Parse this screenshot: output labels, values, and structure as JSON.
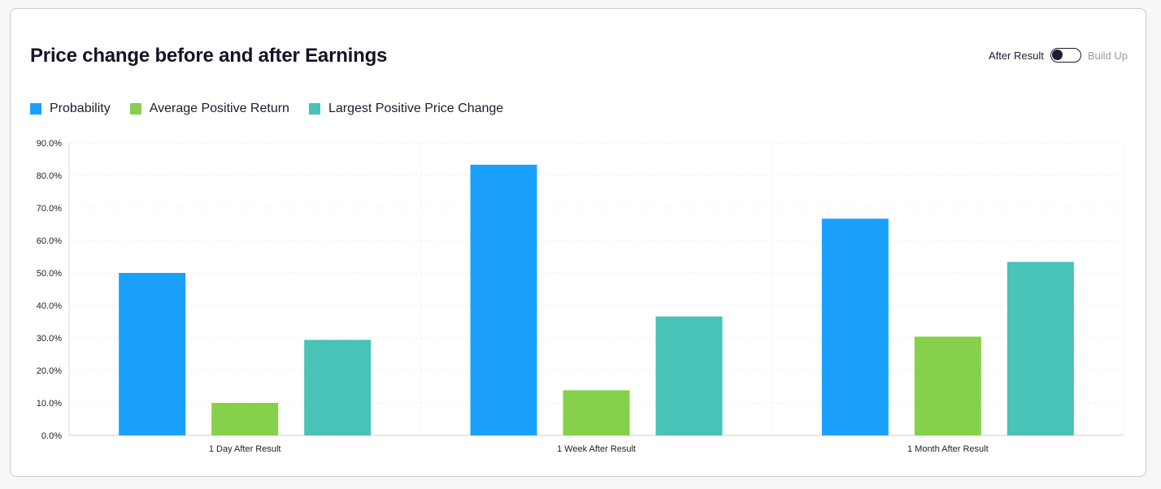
{
  "title": "Price change before and after Earnings",
  "toggle": {
    "left_label": "After Result",
    "right_label": "Build Up",
    "state": "After Result"
  },
  "colors": {
    "probability": "#1aa0fb",
    "avg_positive": "#86d04c",
    "largest_positive": "#49c2b8"
  },
  "chart_data": {
    "type": "bar",
    "categories": [
      "1 Day After Result",
      "1 Week After Result",
      "1 Month After Result"
    ],
    "series": [
      {
        "name": "Probability",
        "values": [
          50.0,
          83.3,
          66.7
        ],
        "color": "#1aa0fb"
      },
      {
        "name": "Average Positive Return",
        "values": [
          10.0,
          13.9,
          30.4
        ],
        "color": "#86d04c"
      },
      {
        "name": "Largest Positive Price Change",
        "values": [
          29.4,
          36.6,
          53.4
        ],
        "color": "#49c2b8"
      }
    ],
    "ylim": [
      0,
      90
    ],
    "yticks": [
      "0.0%",
      "10.0%",
      "20.0%",
      "30.0%",
      "40.0%",
      "50.0%",
      "60.0%",
      "70.0%",
      "80.0%",
      "90.0%"
    ],
    "legend_position": "top-left",
    "grid": true
  }
}
